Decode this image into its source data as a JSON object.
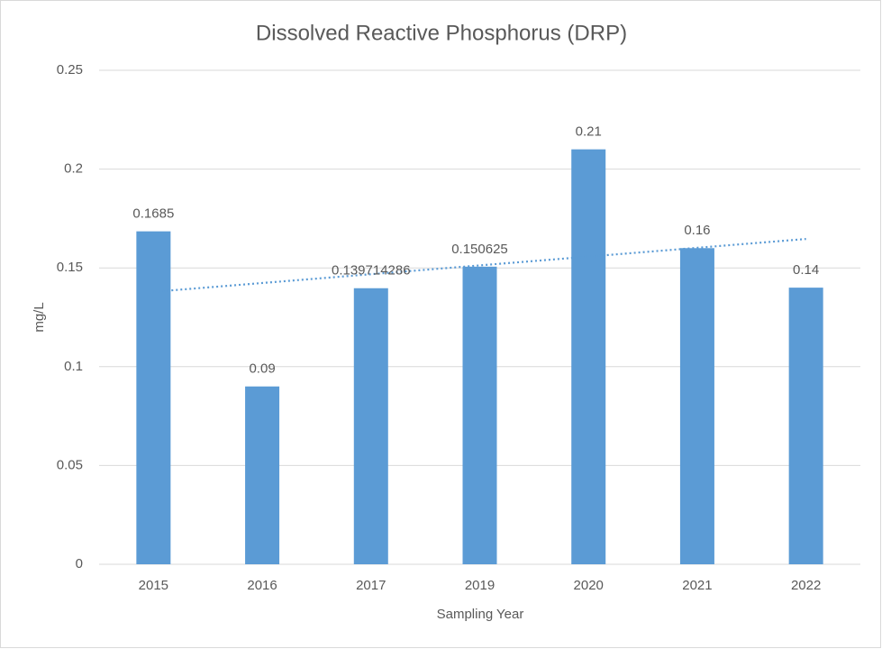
{
  "chart_data": {
    "type": "bar",
    "title": "Dissolved Reactive Phosphorus (DRP)",
    "x_label": "Sampling Year",
    "y_label": "mg/L",
    "categories": [
      "2015",
      "2016",
      "2017",
      "2019",
      "2020",
      "2021",
      "2022"
    ],
    "values": [
      0.1685,
      0.09,
      0.139714286,
      0.150625,
      0.21,
      0.16,
      0.14
    ],
    "color": "#5b9bd5",
    "trendline": "linear",
    "trendline_color": "#5b9bd5",
    "ylim": [
      0,
      0.25
    ],
    "yticks": [
      0,
      0.05,
      0.1,
      0.15,
      0.2,
      0.25
    ],
    "grid": true
  }
}
